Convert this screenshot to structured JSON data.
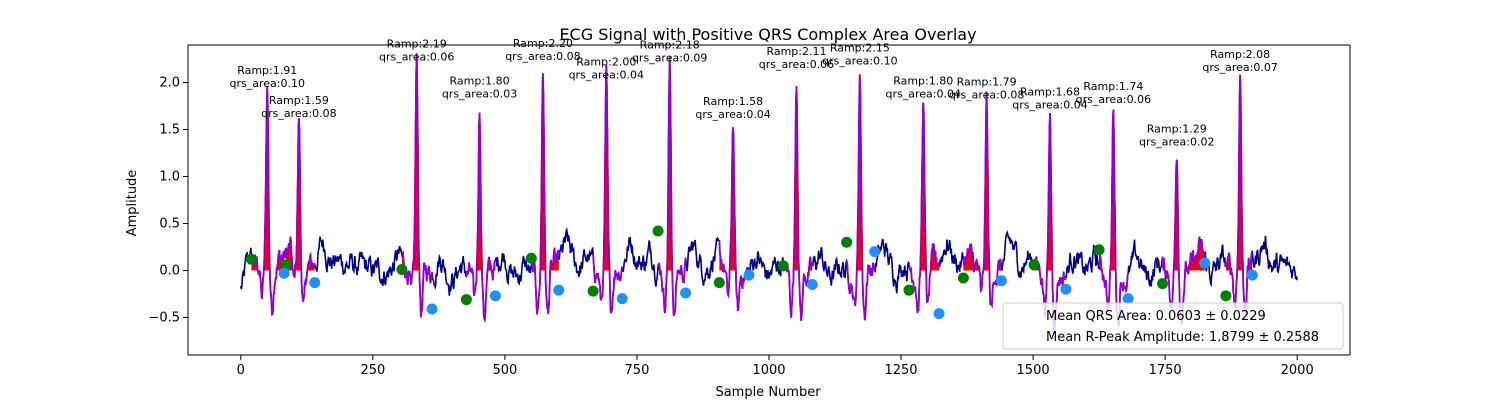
{
  "chart_data": {
    "type": "line",
    "title": "ECG Signal with Positive QRS Complex Area Overlay",
    "xlabel": "Sample Number",
    "ylabel": "Amplitude",
    "xlim": [
      -100,
      2100
    ],
    "ylim": [
      -0.9,
      2.4
    ],
    "xticks": [
      0,
      250,
      500,
      750,
      1000,
      1250,
      1500,
      1750,
      2000
    ],
    "xtick_labels": [
      "0",
      "250",
      "500",
      "750",
      "1000",
      "1250",
      "1500",
      "1750",
      "2000"
    ],
    "yticks": [
      -0.5,
      0.0,
      0.5,
      1.0,
      1.5,
      2.0
    ],
    "ytick_labels": [
      "−0.5",
      "0.0",
      "0.5",
      "1.0",
      "1.5",
      "2.0"
    ],
    "grid": false,
    "colors": {
      "ecg": "#00008b",
      "qrs_segment": "#9400d3",
      "qrs_fill": "#ff0000",
      "onset_marker": "#008000",
      "offset_marker": "#1e90ff"
    },
    "r_peaks": [
      {
        "x": 50,
        "ramp": "1.91",
        "qrs_area": "0.10"
      },
      {
        "x": 110,
        "ramp": "1.59",
        "qrs_area": "0.08"
      },
      {
        "x": 333,
        "ramp": "2.19",
        "qrs_area": "0.06"
      },
      {
        "x": 452,
        "ramp": "1.80",
        "qrs_area": "0.03"
      },
      {
        "x": 572,
        "ramp": "2.20",
        "qrs_area": "0.08"
      },
      {
        "x": 692,
        "ramp": "2.00",
        "qrs_area": "0.04"
      },
      {
        "x": 812,
        "ramp": "2.18",
        "qrs_area": "0.09"
      },
      {
        "x": 932,
        "ramp": "1.58",
        "qrs_area": "0.04"
      },
      {
        "x": 1052,
        "ramp": "2.11",
        "qrs_area": "0.06"
      },
      {
        "x": 1172,
        "ramp": "2.15",
        "qrs_area": "0.10"
      },
      {
        "x": 1292,
        "ramp": "1.80",
        "qrs_area": "0.04"
      },
      {
        "x": 1412,
        "ramp": "1.79",
        "qrs_area": "0.08"
      },
      {
        "x": 1532,
        "ramp": "1.68",
        "qrs_area": "0.04"
      },
      {
        "x": 1652,
        "ramp": "1.74",
        "qrs_area": "0.06"
      },
      {
        "x": 1772,
        "ramp": "1.29",
        "qrs_area": "0.02"
      },
      {
        "x": 1892,
        "ramp": "2.08",
        "qrs_area": "0.07"
      }
    ],
    "onsets": [
      {
        "x": 20,
        "y": 0.12
      },
      {
        "x": 85,
        "y": 0.06
      },
      {
        "x": 305,
        "y": 0.01
      },
      {
        "x": 427,
        "y": -0.31
      },
      {
        "x": 550,
        "y": 0.13
      },
      {
        "x": 667,
        "y": -0.22
      },
      {
        "x": 790,
        "y": 0.42
      },
      {
        "x": 906,
        "y": -0.13
      },
      {
        "x": 1027,
        "y": 0.05
      },
      {
        "x": 1147,
        "y": 0.3
      },
      {
        "x": 1265,
        "y": -0.21
      },
      {
        "x": 1368,
        "y": -0.08
      },
      {
        "x": 1502,
        "y": 0.06
      },
      {
        "x": 1625,
        "y": 0.22
      },
      {
        "x": 1745,
        "y": -0.14
      },
      {
        "x": 1865,
        "y": -0.27
      }
    ],
    "offsets": [
      {
        "x": 82,
        "y": -0.03
      },
      {
        "x": 140,
        "y": -0.13
      },
      {
        "x": 362,
        "y": -0.41
      },
      {
        "x": 482,
        "y": -0.27
      },
      {
        "x": 602,
        "y": -0.21
      },
      {
        "x": 722,
        "y": -0.3
      },
      {
        "x": 842,
        "y": -0.24
      },
      {
        "x": 962,
        "y": -0.05
      },
      {
        "x": 1082,
        "y": -0.15
      },
      {
        "x": 1200,
        "y": 0.2
      },
      {
        "x": 1322,
        "y": -0.46
      },
      {
        "x": 1440,
        "y": -0.11
      },
      {
        "x": 1562,
        "y": -0.2
      },
      {
        "x": 1680,
        "y": -0.3
      },
      {
        "x": 1825,
        "y": 0.08
      },
      {
        "x": 1915,
        "y": -0.05
      }
    ],
    "legend": {
      "placement": "lower-right",
      "entries": [
        "Mean QRS Area: 0.0603 ± 0.0229",
        "Mean R-Peak Amplitude: 1.8799 ± 0.2588"
      ]
    }
  }
}
